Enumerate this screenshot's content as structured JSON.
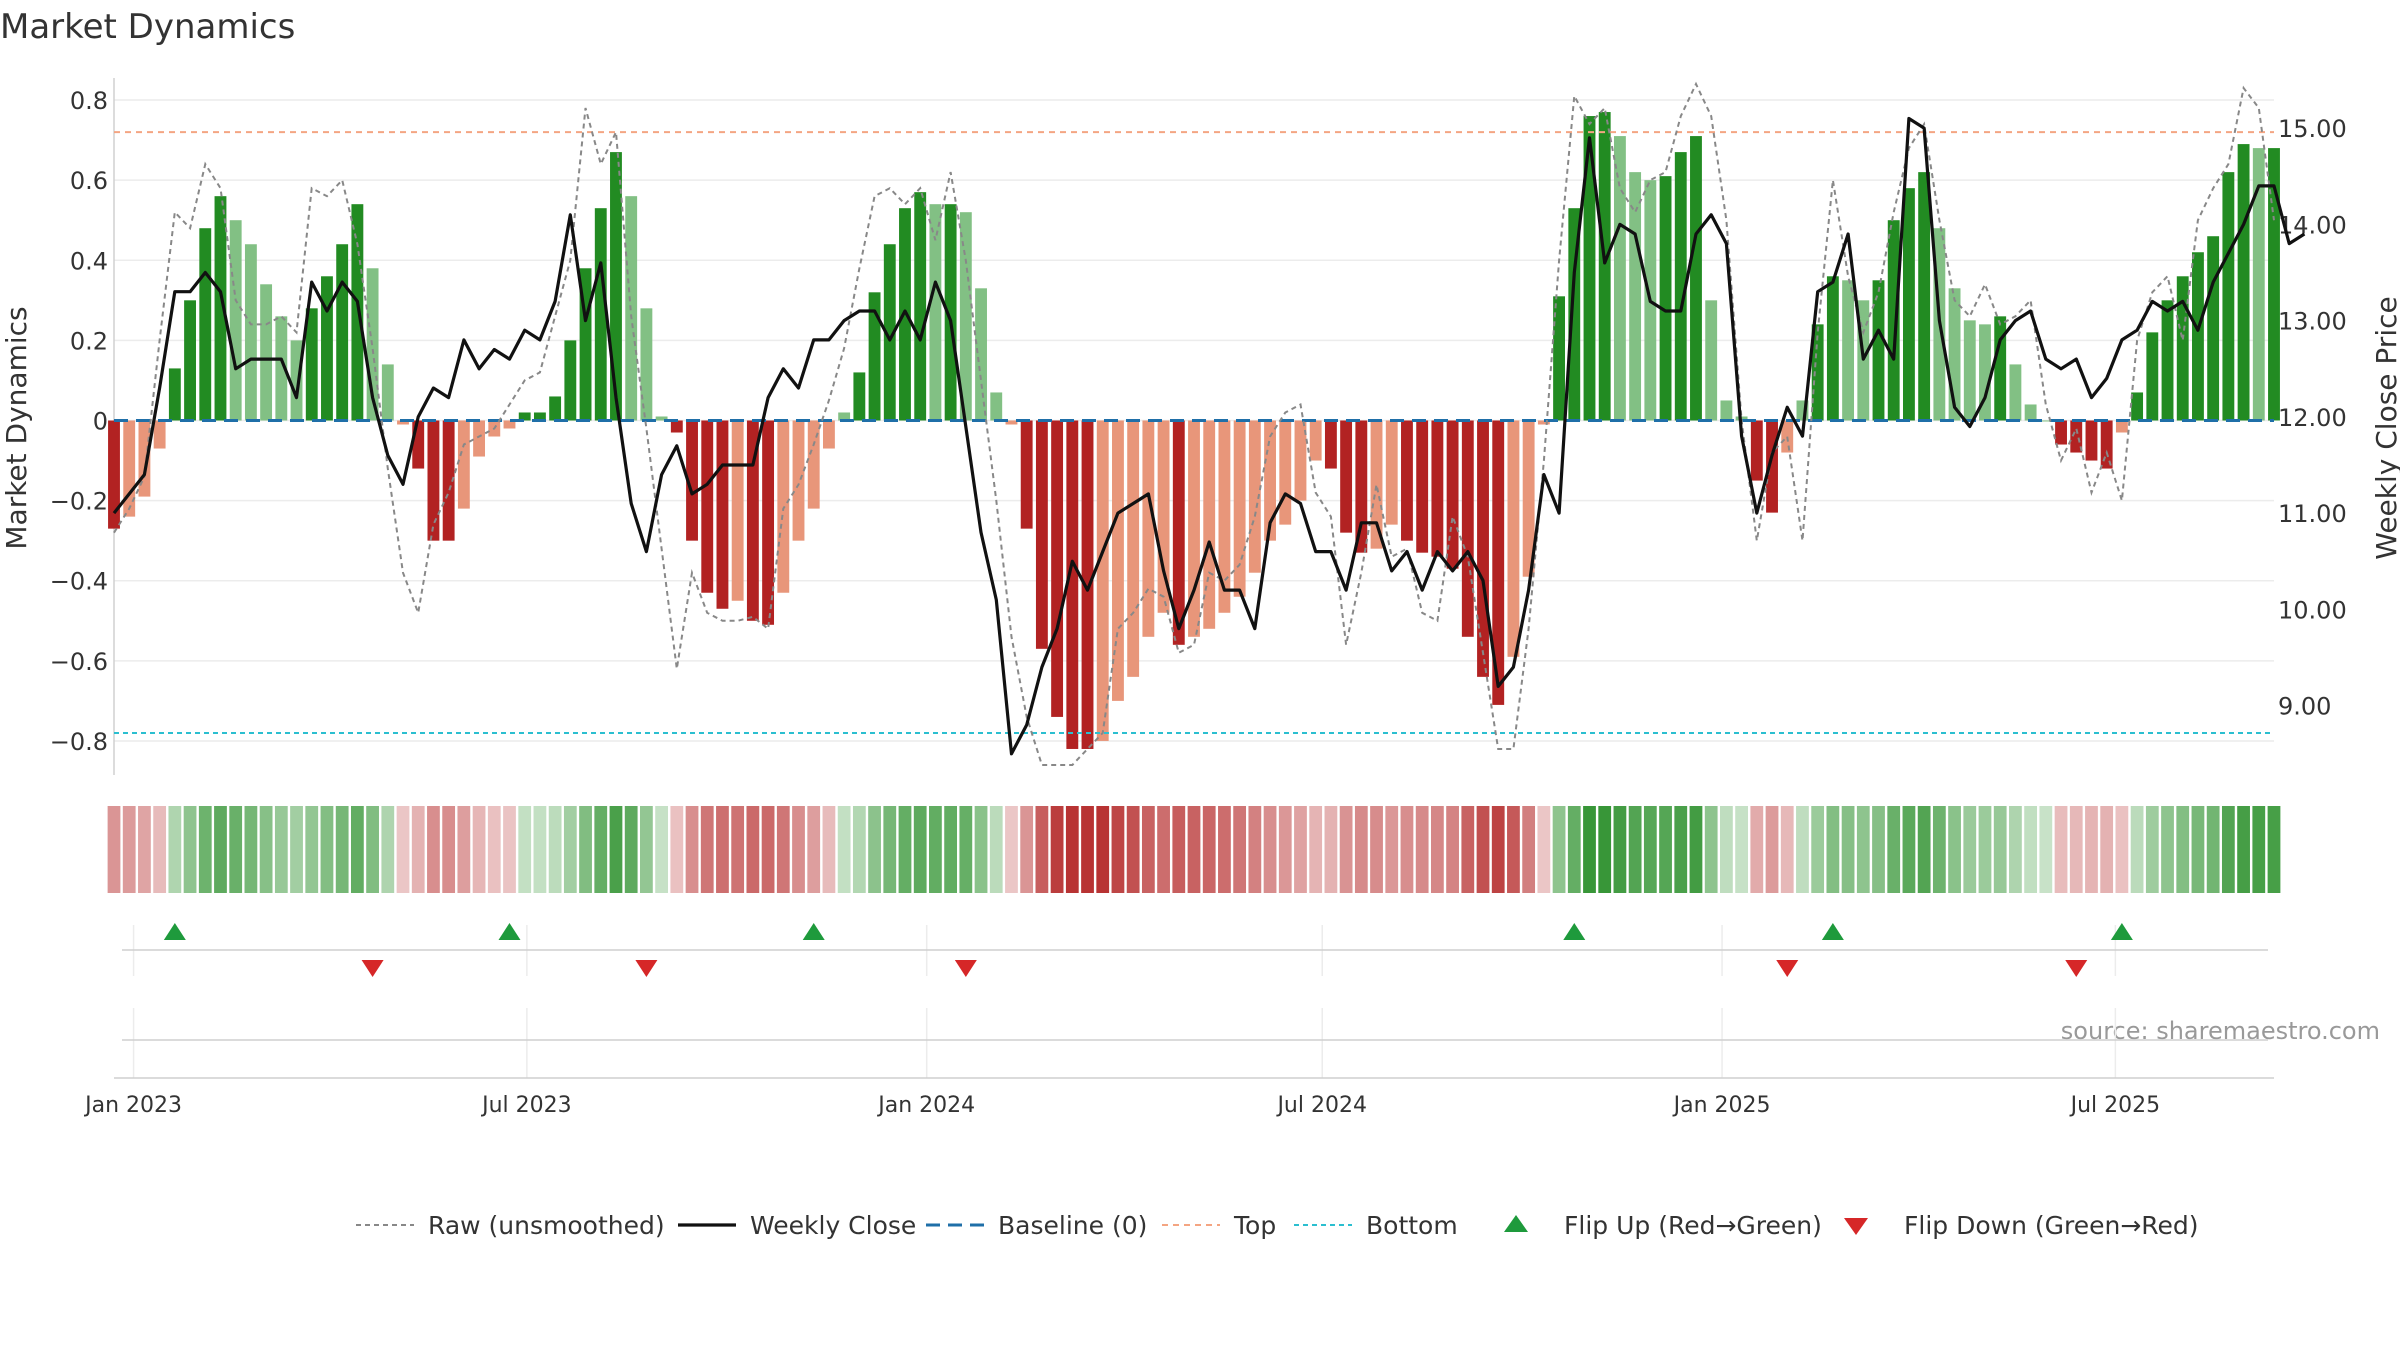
{
  "chart_data": {
    "type": "bar",
    "title": "Market Dynamics",
    "ylabel_left": "Market Dynamics",
    "ylabel_right": "Weekly Close Price",
    "source": "source: sharemaestro.com",
    "ylim_left": [
      -0.88,
      0.85
    ],
    "ylim_right": [
      8.3,
      15.5
    ],
    "yticks_left": [
      0.8,
      0.6,
      0.4,
      0.2,
      0,
      -0.2,
      -0.4,
      -0.6,
      -0.8
    ],
    "yticks_left_labels": [
      "0.8",
      "0.6",
      "0.4",
      "0.2",
      "0",
      "−0.2",
      "−0.4",
      "−0.6",
      "−0.8"
    ],
    "yticks_right": [
      15,
      14,
      13,
      12,
      11,
      10,
      9
    ],
    "yticks_right_labels": [
      "15.00",
      "14.00",
      "13.00",
      "12.00",
      "11.00",
      "10.00",
      "9.00"
    ],
    "x_start": "2022-12-23",
    "week_days": 7,
    "xticks": [
      {
        "date": "2023-01-01",
        "label": "Jan 2023"
      },
      {
        "date": "2023-07-01",
        "label": "Jul 2023"
      },
      {
        "date": "2024-01-01",
        "label": "Jan 2024"
      },
      {
        "date": "2024-07-01",
        "label": "Jul 2024"
      },
      {
        "date": "2025-01-01",
        "label": "Jan 2025"
      },
      {
        "date": "2025-07-01",
        "label": "Jul 2025"
      }
    ],
    "top_threshold": 0.72,
    "bottom_threshold": -0.78,
    "grid": true,
    "legend_placement": "bottom-center",
    "colors": {
      "green_strong": "#228b22",
      "green_light": "#82c084",
      "red_strong": "#b22222",
      "red_light": "#e8967a",
      "close_line": "#111111",
      "raw_line": "#888888",
      "baseline": "#1f6fa8",
      "top": "#f4a582",
      "bottom": "#2bbfd0",
      "flip_up": "#1e9a3c",
      "flip_down": "#d62728"
    },
    "dynamics": [
      -0.27,
      -0.24,
      -0.19,
      -0.07,
      0.13,
      0.3,
      0.48,
      0.56,
      0.5,
      0.44,
      0.34,
      0.26,
      0.2,
      0.28,
      0.36,
      0.44,
      0.54,
      0.38,
      0.14,
      -0.01,
      -0.12,
      -0.3,
      -0.3,
      -0.22,
      -0.09,
      -0.04,
      -0.02,
      0.02,
      0.02,
      0.06,
      0.2,
      0.38,
      0.53,
      0.67,
      0.56,
      0.28,
      0.01,
      -0.03,
      -0.3,
      -0.43,
      -0.47,
      -0.45,
      -0.5,
      -0.51,
      -0.43,
      -0.3,
      -0.22,
      -0.07,
      0.02,
      0.12,
      0.32,
      0.44,
      0.53,
      0.57,
      0.54,
      0.54,
      0.52,
      0.33,
      0.07,
      -0.01,
      -0.27,
      -0.57,
      -0.74,
      -0.82,
      -0.82,
      -0.8,
      -0.7,
      -0.64,
      -0.54,
      -0.48,
      -0.56,
      -0.54,
      -0.52,
      -0.48,
      -0.44,
      -0.38,
      -0.3,
      -0.26,
      -0.2,
      -0.1,
      -0.12,
      -0.28,
      -0.33,
      -0.32,
      -0.26,
      -0.3,
      -0.33,
      -0.34,
      -0.37,
      -0.54,
      -0.64,
      -0.71,
      -0.59,
      -0.39,
      -0.01,
      0.31,
      0.53,
      0.76,
      0.77,
      0.71,
      0.62,
      0.6,
      0.61,
      0.67,
      0.71,
      0.3,
      0.05,
      0.01,
      -0.15,
      -0.23,
      -0.08,
      0.05,
      0.24,
      0.36,
      0.35,
      0.3,
      0.35,
      0.5,
      0.58,
      0.62,
      0.48,
      0.33,
      0.25,
      0.24,
      0.26,
      0.14,
      0.04,
      0.0,
      -0.06,
      -0.08,
      -0.1,
      -0.12,
      -0.03,
      0.07,
      0.22,
      0.3,
      0.36,
      0.42,
      0.46,
      0.62,
      0.69,
      0.68,
      0.68
    ],
    "raw": [
      -0.28,
      -0.22,
      -0.14,
      0.2,
      0.52,
      0.48,
      0.64,
      0.58,
      0.3,
      0.24,
      0.24,
      0.26,
      0.22,
      0.58,
      0.56,
      0.6,
      0.44,
      0.18,
      -0.12,
      -0.38,
      -0.48,
      -0.26,
      -0.18,
      -0.06,
      -0.04,
      -0.02,
      0.04,
      0.1,
      0.12,
      0.26,
      0.4,
      0.78,
      0.64,
      0.72,
      0.26,
      -0.02,
      -0.32,
      -0.62,
      -0.38,
      -0.48,
      -0.5,
      -0.5,
      -0.49,
      -0.52,
      -0.22,
      -0.16,
      -0.06,
      0.05,
      0.18,
      0.38,
      0.56,
      0.58,
      0.54,
      0.58,
      0.45,
      0.62,
      0.4,
      0.1,
      -0.2,
      -0.54,
      -0.74,
      -0.86,
      -0.86,
      -0.86,
      -0.82,
      -0.78,
      -0.52,
      -0.48,
      -0.42,
      -0.44,
      -0.58,
      -0.56,
      -0.38,
      -0.4,
      -0.36,
      -0.24,
      -0.04,
      0.02,
      0.04,
      -0.18,
      -0.24,
      -0.56,
      -0.38,
      -0.16,
      -0.34,
      -0.32,
      -0.48,
      -0.5,
      -0.24,
      -0.34,
      -0.58,
      -0.82,
      -0.82,
      -0.52,
      -0.1,
      0.4,
      0.81,
      0.74,
      0.78,
      0.58,
      0.52,
      0.6,
      0.62,
      0.76,
      0.84,
      0.76,
      0.5,
      0.0,
      -0.3,
      -0.08,
      -0.04,
      -0.3,
      0.22,
      0.6,
      0.36,
      0.22,
      0.32,
      0.52,
      0.68,
      0.74,
      0.5,
      0.3,
      0.26,
      0.34,
      0.24,
      0.26,
      0.3,
      0.04,
      -0.1,
      -0.02,
      -0.18,
      -0.08,
      -0.2,
      0.2,
      0.32,
      0.36,
      0.2,
      0.5,
      0.58,
      0.64,
      0.83,
      0.78,
      0.5
    ],
    "close": [
      11.0,
      11.2,
      11.4,
      12.3,
      13.3,
      13.3,
      13.5,
      13.3,
      12.5,
      12.6,
      12.6,
      12.6,
      12.2,
      13.4,
      13.1,
      13.4,
      13.2,
      12.2,
      11.6,
      11.3,
      12.0,
      12.3,
      12.2,
      12.8,
      12.5,
      12.7,
      12.6,
      12.9,
      12.8,
      13.2,
      14.1,
      13.0,
      13.6,
      12.2,
      11.1,
      10.6,
      11.4,
      11.7,
      11.2,
      11.3,
      11.5,
      11.5,
      11.5,
      12.2,
      12.5,
      12.3,
      12.8,
      12.8,
      13.0,
      13.1,
      13.1,
      12.8,
      13.1,
      12.8,
      13.4,
      13.0,
      11.9,
      10.8,
      10.1,
      8.5,
      8.8,
      9.4,
      9.8,
      10.5,
      10.2,
      10.6,
      11.0,
      11.1,
      11.2,
      10.4,
      9.8,
      10.2,
      10.7,
      10.2,
      10.2,
      9.8,
      10.9,
      11.2,
      11.1,
      10.6,
      10.6,
      10.2,
      10.9,
      10.9,
      10.4,
      10.6,
      10.2,
      10.6,
      10.4,
      10.6,
      10.3,
      9.2,
      9.4,
      10.2,
      11.4,
      11.0,
      13.5,
      14.9,
      13.6,
      14.0,
      13.9,
      13.2,
      13.1,
      13.1,
      13.9,
      14.1,
      13.8,
      11.8,
      11.0,
      11.6,
      12.1,
      11.8,
      13.3,
      13.4,
      13.9,
      12.6,
      12.9,
      12.6,
      15.1,
      15.0,
      13.0,
      12.1,
      11.9,
      12.2,
      12.8,
      13.0,
      13.1,
      12.6,
      12.5,
      12.6,
      12.2,
      12.4,
      12.8,
      12.9,
      13.2,
      13.1,
      13.2,
      12.9,
      13.4,
      13.7,
      14.0,
      14.4,
      14.4,
      13.8,
      13.9
    ],
    "flip_up": [
      "2023-01-20",
      "2023-06-23",
      "2023-11-10",
      "2024-10-25",
      "2025-02-21",
      "2025-07-04"
    ],
    "flip_down": [
      "2023-04-21",
      "2023-08-25",
      "2024-01-19",
      "2025-01-31",
      "2025-06-13"
    ],
    "legend": [
      {
        "key": "raw",
        "label": "Raw (unsmoothed)"
      },
      {
        "key": "close",
        "label": "Weekly Close"
      },
      {
        "key": "baseline",
        "label": "Baseline (0)"
      },
      {
        "key": "top",
        "label": "Top"
      },
      {
        "key": "bottom",
        "label": "Bottom"
      },
      {
        "key": "flip_up",
        "label": "Flip Up (Red→Green)"
      },
      {
        "key": "flip_down",
        "label": "Flip Down (Green→Red)"
      }
    ]
  }
}
